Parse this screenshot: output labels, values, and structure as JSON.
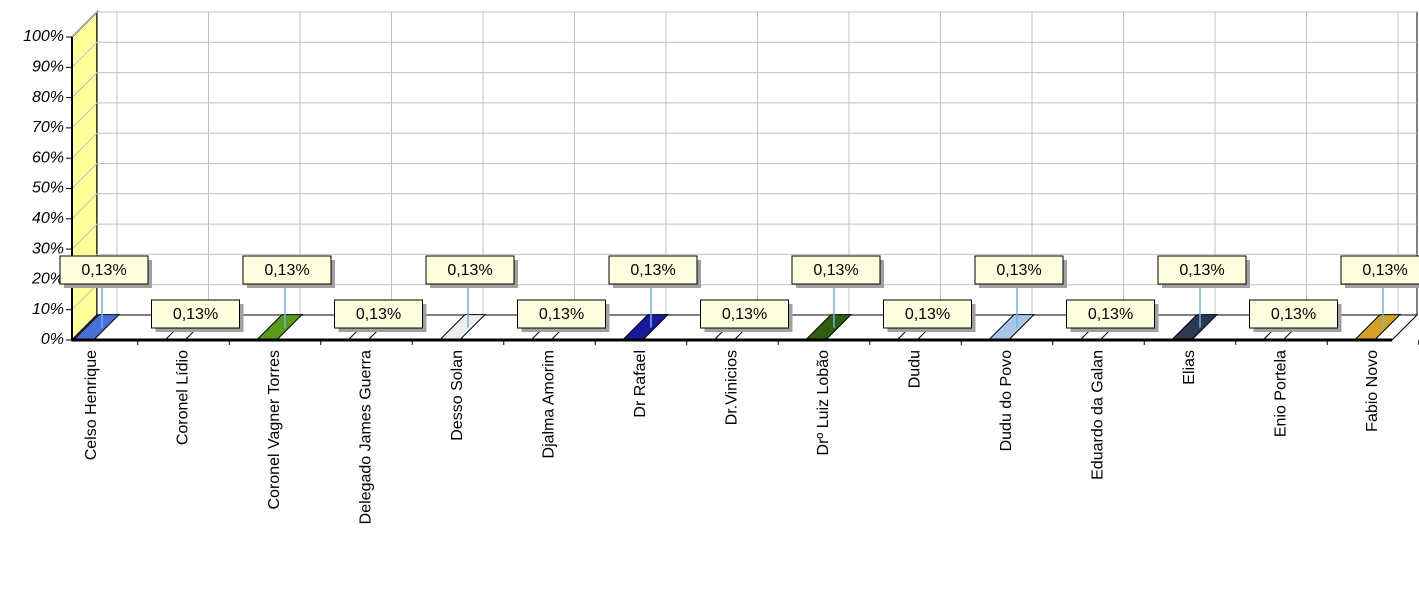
{
  "chart_data": {
    "type": "bar3d",
    "categories": [
      "Celso Henrique",
      "Coronel Lídio",
      "Coronel Vagner Torres",
      "Delegado James Guerra",
      "Desso Solan",
      "Djalma Amorim",
      "Dr Rafael",
      "Dr.Vinicios",
      "Drº Luiz Lobão",
      "Dudu",
      "Dudu do Povo",
      "Eduardo da Galan",
      "Elias",
      "Enio Portela",
      "Fabio Novo"
    ],
    "values": [
      0.13,
      0.13,
      0.13,
      0.13,
      0.13,
      0.13,
      0.13,
      0.13,
      0.13,
      0.13,
      0.13,
      0.13,
      0.13,
      0.13,
      0.13
    ],
    "value_labels": [
      "0,13%",
      "0,13%",
      "0,13%",
      "0,13%",
      "0,13%",
      "0,13%",
      "0,13%",
      "0,13%",
      "0,13%",
      "0,13%",
      "0,13%",
      "0,13%",
      "0,13%",
      "0,13%",
      "0,13%"
    ],
    "colors": [
      "#4a6fd8",
      "#ffffff",
      "#5a9a1a",
      "#ffffff",
      "#eeeeee",
      "#ffffff",
      "#1a1aa0",
      "#ffffff",
      "#2e5e10",
      "#ffffff",
      "#a8c4e8",
      "#ffffff",
      "#2a3a50",
      "#ffffff",
      "#d4a020"
    ],
    "ylim": [
      0,
      100
    ],
    "yticks": [
      {
        "value": 0,
        "label": "0%"
      },
      {
        "value": 10,
        "label": "10%"
      },
      {
        "value": 20,
        "label": "20%"
      },
      {
        "value": 30,
        "label": "30%"
      },
      {
        "value": 40,
        "label": "40%"
      },
      {
        "value": 50,
        "label": "50%"
      },
      {
        "value": 60,
        "label": "60%"
      },
      {
        "value": 70,
        "label": "70%"
      },
      {
        "value": 80,
        "label": "80%"
      },
      {
        "value": 90,
        "label": "90%"
      },
      {
        "value": 100,
        "label": "100%"
      }
    ],
    "grid": true
  }
}
